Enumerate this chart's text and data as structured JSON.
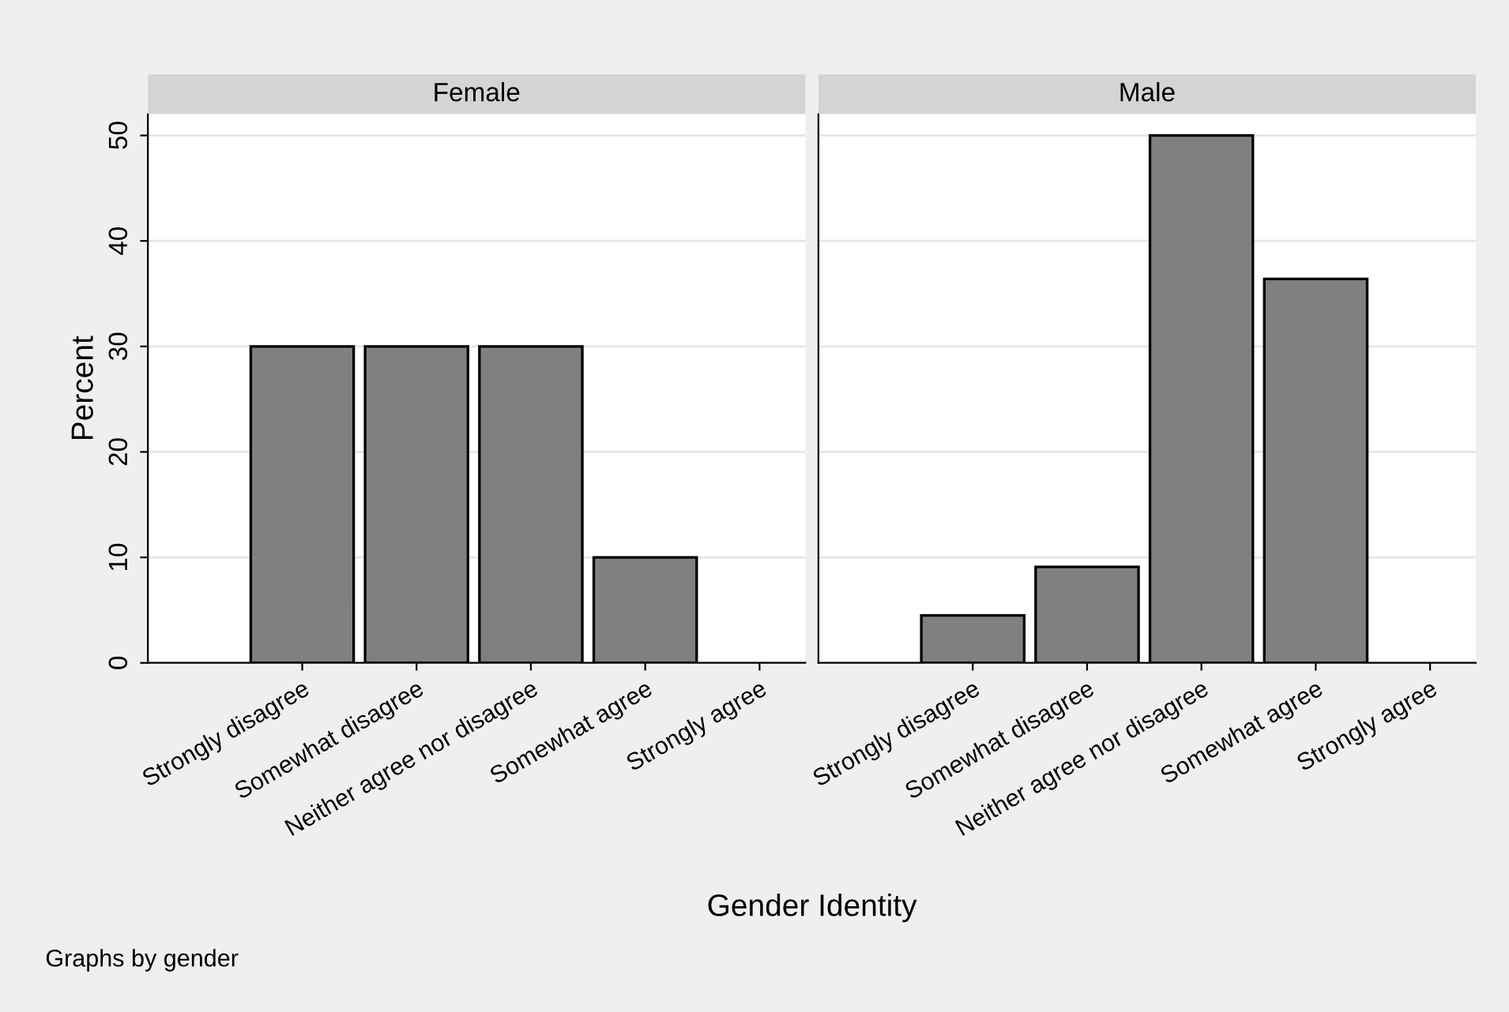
{
  "chart_data": [
    {
      "type": "bar",
      "title": "Female",
      "ylabel": "Percent",
      "xlabel": "Gender Identity",
      "categories": [
        "Strongly disagree",
        "Somewhat disagree",
        "Neither agree nor disagree",
        "Somewhat agree",
        "Strongly agree"
      ],
      "values": [
        30,
        30,
        30,
        10,
        0
      ],
      "color": "#808080",
      "ylim": [
        0,
        52
      ],
      "yticks": [
        0,
        10,
        20,
        30,
        40,
        50
      ],
      "grid": "y",
      "annotations": [
        "Graphs by gender"
      ]
    },
    {
      "type": "bar",
      "title": "Male",
      "categories": [
        "Strongly disagree",
        "Somewhat disagree",
        "Neither agree nor disagree",
        "Somewhat agree",
        "Strongly agree"
      ],
      "values": [
        4.5,
        9.1,
        50,
        36.4,
        0
      ],
      "color": "#808080",
      "ylim": [
        0,
        52
      ],
      "yticks": [
        0,
        10,
        20,
        30,
        40,
        50
      ],
      "grid": "y",
      "tick_labels": "x"
    }
  ]
}
